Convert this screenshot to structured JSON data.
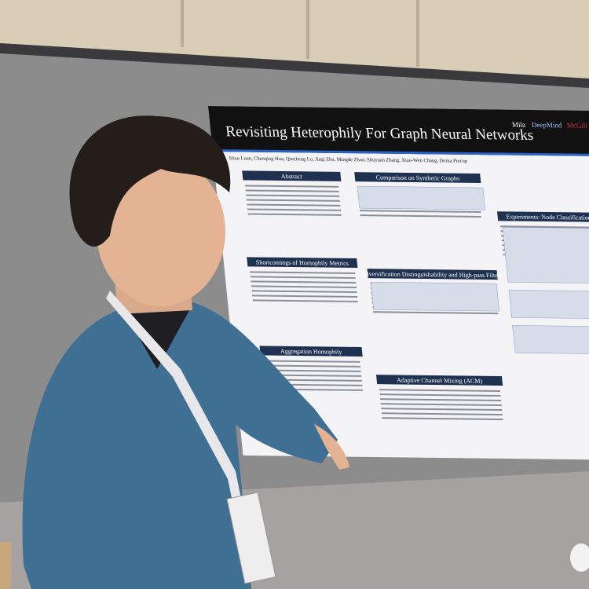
{
  "poster": {
    "title": "Revisiting Heterophily For Graph Neural Networks",
    "authors": "Sitao Luan, Chenqing Hua, Qincheng Lu, Jiaqi Zhu, Mingde Zhao, Shuyuan Zhang, Xiao-Wen Chang, Doina Precup",
    "logos": [
      "Mila",
      "DeepMind",
      "McGill"
    ],
    "sections": [
      "Abstract",
      "Shortcomings of Homophily Metrics",
      "Aggregation Homophily",
      "Comparison on Synthetic Graphs",
      "Diversification Distinguishability and High-pass Filters",
      "Adaptive Channel Mixing (ACM)",
      "Experiments: Node Classification"
    ]
  }
}
